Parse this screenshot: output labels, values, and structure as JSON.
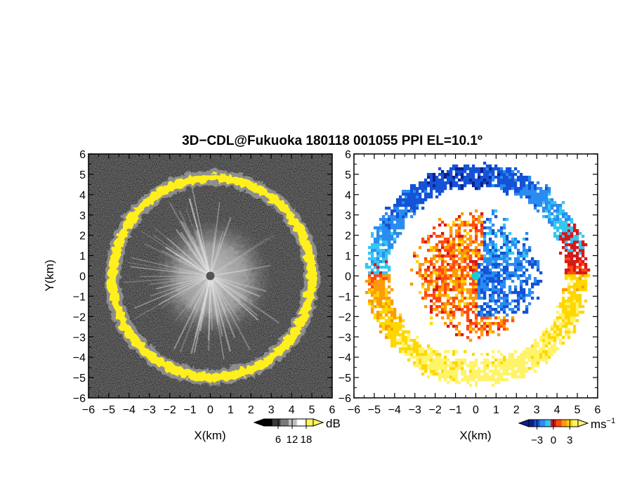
{
  "chart_data": [
    {
      "type": "heatmap",
      "panel": "reflectivity",
      "title": "3D−CDL@Fukuoka 180118 001055 PPI EL=10.1º",
      "xlabel": "X(km)",
      "ylabel": "Y(km)",
      "xlim": [
        -6,
        6
      ],
      "ylim": [
        -6,
        6
      ],
      "x_ticks": [
        "−6",
        "−5",
        "−4",
        "−3",
        "−2",
        "−1",
        "0",
        "1",
        "2",
        "3",
        "4",
        "5",
        "6"
      ],
      "y_ticks": [
        "−6",
        "−5",
        "−4",
        "−3",
        "−2",
        "−1",
        "0",
        "1",
        "2",
        "3",
        "4",
        "5",
        "6"
      ],
      "background": "#2b2b2b",
      "ring": {
        "radius_km": 4.9,
        "color": "#ffef1a",
        "description_value": "high return (>18 dB)"
      },
      "inner_echo_radius_km": 3.0,
      "center_marker_color": "#555555",
      "colorbar": {
        "unit": "dB",
        "tick_labels": [
          "6",
          "12",
          "18"
        ],
        "tick_values": [
          6,
          12,
          18
        ],
        "range": [
          0,
          21
        ],
        "colors": [
          "#000000",
          "#3a3a3a",
          "#7a7a7a",
          "#bdbdbd",
          "#ffffff",
          "#fff45a"
        ]
      }
    },
    {
      "type": "heatmap",
      "panel": "doppler_velocity",
      "xlabel": "X(km)",
      "xlim": [
        -6,
        6
      ],
      "ylim": [
        -6,
        6
      ],
      "x_ticks": [
        "−6",
        "−5",
        "−4",
        "−3",
        "−2",
        "−1",
        "0",
        "1",
        "2",
        "3",
        "4",
        "5",
        "6"
      ],
      "y_ticks": [
        "−6",
        "−5",
        "−4",
        "−3",
        "−2",
        "−1",
        "0",
        "1",
        "2",
        "3",
        "4",
        "5",
        "6"
      ],
      "background": "#ffffff",
      "ring_radius_km": 4.9,
      "inner_echo_radius_km": 3.0,
      "center_marker_color": "#19c9d9",
      "colorbar": {
        "unit": "ms",
        "unit_superscript": "−1",
        "tick_labels": [
          "−3",
          "0",
          "3"
        ],
        "tick_values": [
          -3,
          0,
          3
        ],
        "range": [
          -4.5,
          4.5
        ],
        "colors": [
          "#0a1f8f",
          "#1452d6",
          "#2a8cf0",
          "#35c6f2",
          "#d81818",
          "#ff4a10",
          "#ff9a08",
          "#ffd700",
          "#fff36a"
        ]
      }
    }
  ]
}
